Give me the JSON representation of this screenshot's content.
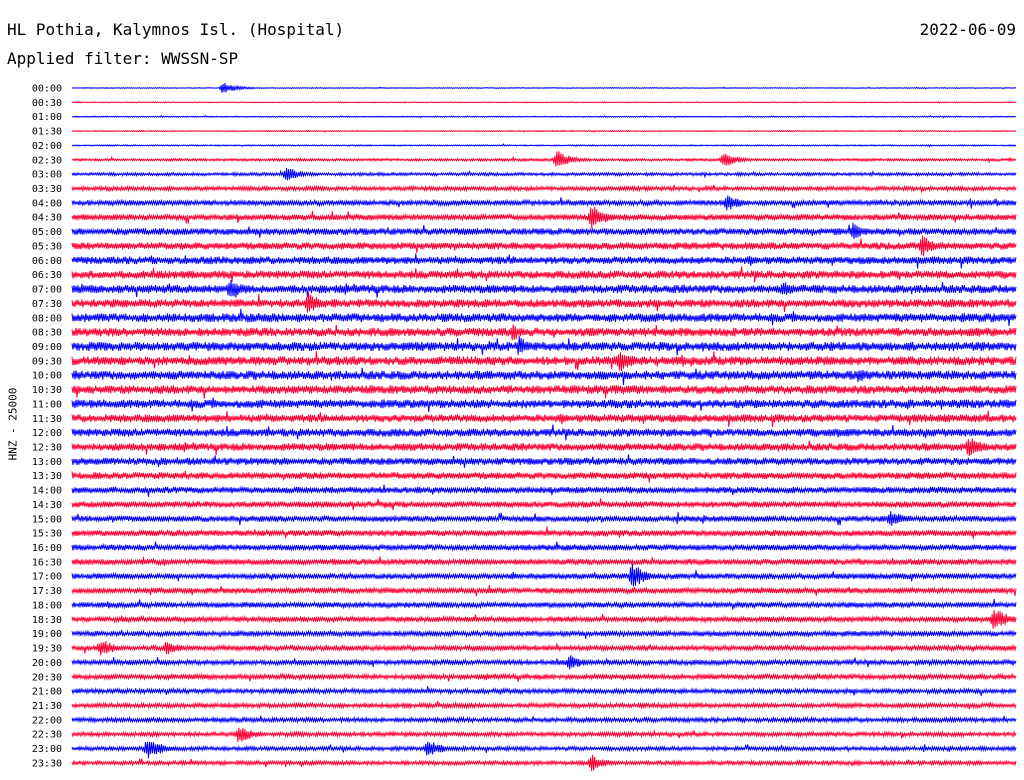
{
  "header": {
    "station": "HL Pothia, Kalymnos Isl. (Hospital)",
    "date": "2022-06-09",
    "filter": "Applied filter: WWSSN-SP"
  },
  "axis": {
    "ylabel": "HNZ - 25000"
  },
  "colors": {
    "trace_a": "#0000ff",
    "trace_b": "#ff0033",
    "background": "#ffffff"
  },
  "chart_data": {
    "type": "line",
    "ylabel": "HNZ - 25000",
    "row_labels": [
      "00:00",
      "00:30",
      "01:00",
      "01:30",
      "02:00",
      "02:30",
      "03:00",
      "03:30",
      "04:00",
      "04:30",
      "05:00",
      "05:30",
      "06:00",
      "06:30",
      "07:00",
      "07:30",
      "08:00",
      "08:30",
      "09:00",
      "09:30",
      "10:00",
      "10:30",
      "11:00",
      "11:30",
      "12:00",
      "12:30",
      "13:00",
      "13:30",
      "14:00",
      "14:30",
      "15:00",
      "15:30",
      "16:00",
      "16:30",
      "17:00",
      "17:30",
      "18:00",
      "18:30",
      "19:00",
      "19:30",
      "20:00",
      "20:30",
      "21:00",
      "21:30",
      "22:00",
      "22:30",
      "23:00",
      "23:30"
    ],
    "row_colors": [
      "blue",
      "red"
    ],
    "noise_level": [
      0.4,
      0.4,
      0.5,
      0.5,
      0.6,
      1.2,
      1.5,
      2.0,
      2.6,
      3.0,
      3.4,
      3.6,
      3.8,
      4.0,
      4.2,
      4.2,
      4.4,
      4.4,
      4.5,
      4.5,
      4.5,
      4.3,
      4.3,
      4.0,
      4.0,
      3.8,
      3.6,
      3.4,
      3.2,
      3.1,
      3.0,
      3.0,
      2.9,
      2.9,
      2.8,
      2.8,
      2.7,
      2.6,
      2.6,
      2.5,
      2.4,
      2.4,
      2.3,
      2.2,
      2.2,
      2.1,
      2.0,
      2.0
    ],
    "events": [
      {
        "row": "00:00",
        "minute": 4.8,
        "amplitude": 6
      },
      {
        "row": "02:30",
        "minute": 15.4,
        "amplitude": 10
      },
      {
        "row": "02:30",
        "minute": 20.7,
        "amplitude": 8
      },
      {
        "row": "03:00",
        "minute": 6.8,
        "amplitude": 8
      },
      {
        "row": "04:00",
        "minute": 20.8,
        "amplitude": 9
      },
      {
        "row": "04:30",
        "minute": 16.5,
        "amplitude": 14
      },
      {
        "row": "05:00",
        "minute": 24.8,
        "amplitude": 9
      },
      {
        "row": "05:30",
        "minute": 27.0,
        "amplitude": 12
      },
      {
        "row": "07:00",
        "minute": 5.0,
        "amplitude": 12
      },
      {
        "row": "07:00",
        "minute": 22.6,
        "amplitude": 10
      },
      {
        "row": "07:30",
        "minute": 7.5,
        "amplitude": 12
      },
      {
        "row": "08:30",
        "minute": 14.0,
        "amplitude": 9
      },
      {
        "row": "09:00",
        "minute": 14.2,
        "amplitude": 11
      },
      {
        "row": "09:30",
        "minute": 17.4,
        "amplitude": 14
      },
      {
        "row": "10:00",
        "minute": 25.0,
        "amplitude": 8
      },
      {
        "row": "12:30",
        "minute": 28.5,
        "amplitude": 12
      },
      {
        "row": "15:00",
        "minute": 26.0,
        "amplitude": 9
      },
      {
        "row": "17:00",
        "minute": 17.8,
        "amplitude": 14
      },
      {
        "row": "18:30",
        "minute": 29.3,
        "amplitude": 13
      },
      {
        "row": "19:30",
        "minute": 0.9,
        "amplitude": 10
      },
      {
        "row": "19:30",
        "minute": 3.0,
        "amplitude": 8
      },
      {
        "row": "20:00",
        "minute": 15.8,
        "amplitude": 9
      },
      {
        "row": "22:30",
        "minute": 5.3,
        "amplitude": 10
      },
      {
        "row": "23:00",
        "minute": 2.4,
        "amplitude": 12
      },
      {
        "row": "23:00",
        "minute": 11.3,
        "amplitude": 10
      },
      {
        "row": "23:30",
        "minute": 16.5,
        "amplitude": 9
      }
    ],
    "minutes_per_row": 30,
    "grid": false
  }
}
